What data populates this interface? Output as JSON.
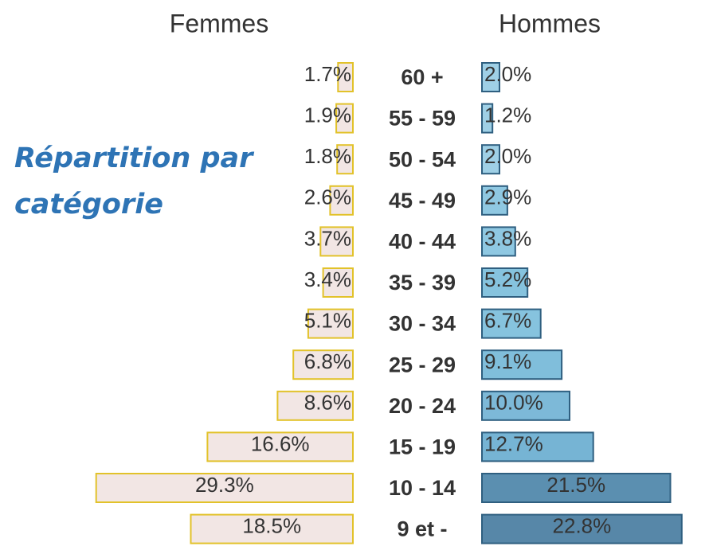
{
  "chart_data": {
    "type": "pyramid",
    "title": "Répartition par catégorie",
    "categories": [
      "60 +",
      "55 - 59",
      "50 - 54",
      "45 - 49",
      "40 - 44",
      "35 - 39",
      "30 - 34",
      "25 - 29",
      "20 - 24",
      "15 - 19",
      "10 - 14",
      "9 et -"
    ],
    "series": [
      {
        "name": "Femmes",
        "color": "#f2e6e4",
        "stroke": "#e2c22a",
        "values": [
          1.7,
          1.9,
          1.8,
          2.6,
          3.7,
          3.4,
          5.1,
          6.8,
          8.6,
          16.6,
          29.3,
          18.5
        ],
        "value_labels": [
          "1.7%",
          "1.9%",
          "1.8%",
          "2.6%",
          "3.7%",
          "3.4%",
          "5.1%",
          "6.8%",
          "8.6%",
          "16.6%",
          "29.3%",
          "18.5%"
        ]
      },
      {
        "name": "Hommes",
        "color": "#86c3de",
        "stroke": "#2f5f80",
        "colors": [
          "#9fd0e6",
          "#9fd0e6",
          "#9fd0e6",
          "#8fc8e2",
          "#8fc8e2",
          "#86c3de",
          "#86c3de",
          "#80bedb",
          "#7db9d8",
          "#76b4d4",
          "#5b8fb0",
          "#5787a8"
        ],
        "values": [
          2.0,
          1.2,
          2.0,
          2.9,
          3.8,
          5.2,
          6.7,
          9.1,
          10.0,
          12.7,
          21.5,
          22.8
        ],
        "value_labels": [
          "2.0%",
          "1.2%",
          "2.0%",
          "2.9%",
          "3.8%",
          "5.2%",
          "6.7%",
          "9.1%",
          "10.0%",
          "12.7%",
          "21.5%",
          "22.8%"
        ]
      }
    ]
  }
}
